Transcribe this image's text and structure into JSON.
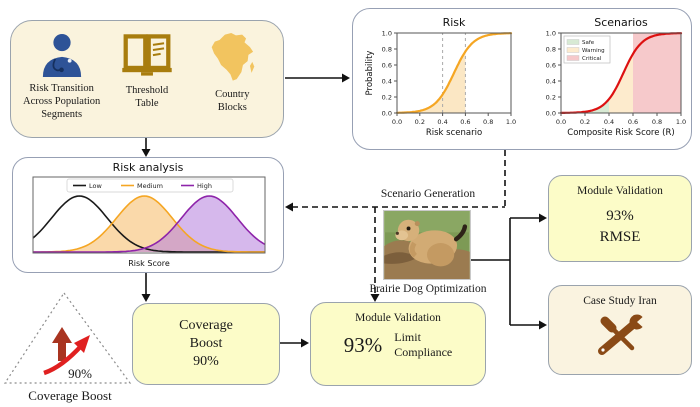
{
  "inputs_box": {
    "items": [
      {
        "icon": "doctor-icon",
        "label": "Risk Transition\nAcross Population\nSegments"
      },
      {
        "icon": "book-icon",
        "label": "Threshold\nTable"
      },
      {
        "icon": "africa-map-icon",
        "label": "Country\nBlocks"
      }
    ]
  },
  "chart_data": [
    {
      "type": "line",
      "title": "Risk",
      "xlabel": "Risk scenario",
      "ylabel": "Probability",
      "xlim": [
        0,
        1
      ],
      "ylim": [
        0,
        1
      ],
      "xticks": [
        0.0,
        0.2,
        0.4,
        0.6,
        0.8,
        1.0
      ],
      "yticks": [
        0.0,
        0.2,
        0.4,
        0.6,
        0.8,
        1.0
      ],
      "grid": false,
      "series": [
        {
          "name": "risk-probability-sigmoid",
          "color": "#f5a623",
          "curve": "logistic",
          "midpoint": 0.5,
          "steepness": 12
        }
      ],
      "thresholds": [
        0.4,
        0.6
      ],
      "regions": [
        {
          "label": "shaded-area",
          "from": 0.0,
          "to": 0.6,
          "under_curve": true,
          "color": "#fbe7c4"
        }
      ]
    },
    {
      "type": "line",
      "title": "Scenarios",
      "xlabel": "Composite Risk Score (R)",
      "ylabel": "",
      "xlim": [
        0,
        1
      ],
      "ylim": [
        0,
        1
      ],
      "xticks": [
        0.0,
        0.2,
        0.4,
        0.6,
        0.8,
        1.0
      ],
      "yticks": [
        0.0,
        0.2,
        0.4,
        0.6,
        0.8,
        1.0
      ],
      "grid": false,
      "legend_position": "upper-left",
      "legend": [
        {
          "label": "Safe",
          "color": "#d8ead4"
        },
        {
          "label": "Warning",
          "color": "#fdebcd"
        },
        {
          "label": "Critical",
          "color": "#f6c9cb"
        }
      ],
      "series": [
        {
          "name": "scenario-sigmoid",
          "color": "#dd1111",
          "curve": "logistic",
          "midpoint": 0.52,
          "steepness": 13
        }
      ],
      "regions": [
        {
          "label": "Safe",
          "from": 0.0,
          "to": 0.4,
          "under_curve": true,
          "color": "#d8ead4"
        },
        {
          "label": "Warning",
          "from": 0.4,
          "to": 0.6,
          "under_curve": true,
          "color": "#fdebcd"
        },
        {
          "label": "Critical",
          "from": 0.6,
          "to": 1.0,
          "under_curve": false,
          "color": "#f6c9cb"
        }
      ]
    },
    {
      "type": "area",
      "title": "Risk analysis",
      "xlabel": "Risk Score",
      "legend_position": "top",
      "series": [
        {
          "name": "Low",
          "color": "#1a1a1a",
          "fill": "none",
          "fill_opacity": 0,
          "mean": 0.2,
          "sd": 0.12
        },
        {
          "name": "Medium",
          "color": "#f5a623",
          "fill": "#f6bf72",
          "fill_opacity": 0.6,
          "mean": 0.48,
          "sd": 0.12
        },
        {
          "name": "High",
          "color": "#8e24aa",
          "fill": "#b57edc",
          "fill_opacity": 0.55,
          "mean": 0.76,
          "sd": 0.12
        }
      ]
    }
  ],
  "labels": {
    "scenario_generation": "Scenario Generation",
    "prairie_dog_optimization": "Prairie Dog Optimization"
  },
  "boxes": {
    "rmse": {
      "title": "Module Validation",
      "value": "93%",
      "metric": "RMSE"
    },
    "case_study": {
      "title": "Case Study Iran"
    },
    "coverage": {
      "text": "Coverage\nBoost\n90%"
    },
    "module_validation": {
      "title": "Module Validation",
      "value": "93%",
      "metric": "Limit\nCompliance"
    }
  },
  "triangle": {
    "value": "90%",
    "caption": "Coverage Boost"
  },
  "colors": {
    "cream_box": "#faf3dd",
    "yellow_box": "#fcfcc8",
    "case_study_box": "#faf3e0",
    "box_border": "#9aa3ad",
    "doctor_blue": "#2e5397",
    "book_gold": "#a87d0e",
    "africa_gold": "#f2c45f",
    "tools_brown": "#8a4a16",
    "risk_curve_orange": "#f5a623",
    "scenario_curve_red": "#dd1111",
    "high_purple": "#8e24aa",
    "up_arrow_dark_red": "#a93420",
    "curved_arrow_red": "#e02020",
    "connector_black": "#111111"
  }
}
